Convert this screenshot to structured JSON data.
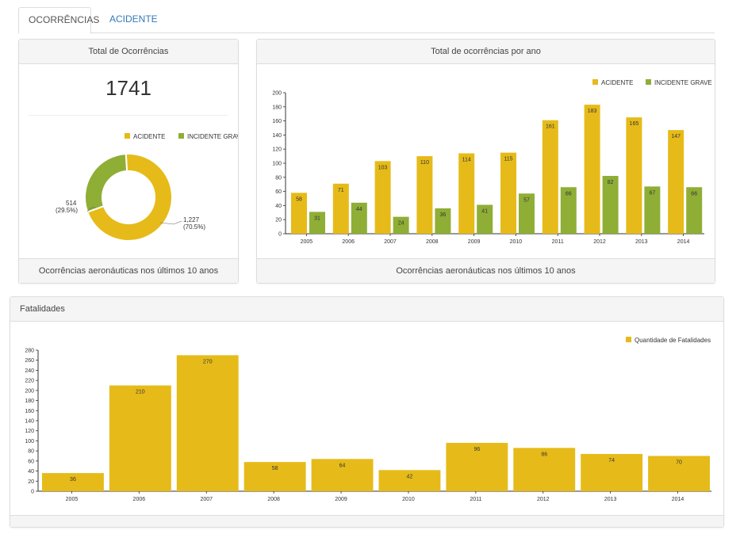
{
  "tabs": [
    {
      "label": "OCORRÊNCIAS",
      "active": true
    },
    {
      "label": "ACIDENTE",
      "active": false
    }
  ],
  "colors": {
    "acidente": "#e6bb19",
    "incidente": "#8fae36",
    "fatalidades": "#e6bb19"
  },
  "total_panel": {
    "title": "Total de Ocorrências",
    "total": "1741",
    "footer": "Ocorrências aeronáuticas nos últimos 10 anos"
  },
  "year_panel": {
    "title": "Total de ocorrências por ano",
    "footer": "Ocorrências aeronáuticas nos últimos 10 anos"
  },
  "fatal_panel": {
    "title": "Fatalidades"
  },
  "chart_data": [
    {
      "type": "pie",
      "legend": [
        "ACIDENTE",
        "INCIDENTE GRAVE"
      ],
      "values": [
        1227,
        514
      ],
      "labels": [
        {
          "value": "1,227",
          "pct": "(70.5%)"
        },
        {
          "value": "514",
          "pct": "(29.5%)"
        }
      ]
    },
    {
      "type": "bar",
      "categories": [
        "2005",
        "2006",
        "2007",
        "2008",
        "2009",
        "2010",
        "2011",
        "2012",
        "2013",
        "2014"
      ],
      "series": [
        {
          "name": "ACIDENTE",
          "values": [
            58,
            71,
            103,
            110,
            114,
            115,
            161,
            183,
            165,
            147
          ]
        },
        {
          "name": "INCIDENTE GRAVE",
          "values": [
            31,
            44,
            24,
            36,
            41,
            57,
            66,
            82,
            67,
            66
          ]
        }
      ],
      "ylim": [
        0,
        200
      ],
      "yticks": [
        0,
        20,
        40,
        60,
        80,
        100,
        120,
        140,
        160,
        180,
        200
      ],
      "legend_position": "top-right"
    },
    {
      "type": "bar",
      "categories": [
        "2005",
        "2006",
        "2007",
        "2008",
        "2009",
        "2010",
        "2011",
        "2012",
        "2013",
        "2014"
      ],
      "series": [
        {
          "name": "Quantidade de Fatalidades",
          "values": [
            36,
            210,
            270,
            58,
            64,
            42,
            96,
            86,
            74,
            70
          ]
        }
      ],
      "ylim": [
        0,
        280
      ],
      "yticks": [
        0,
        20,
        40,
        60,
        80,
        100,
        120,
        140,
        160,
        180,
        200,
        220,
        240,
        260,
        280
      ],
      "legend_position": "top-right"
    }
  ]
}
